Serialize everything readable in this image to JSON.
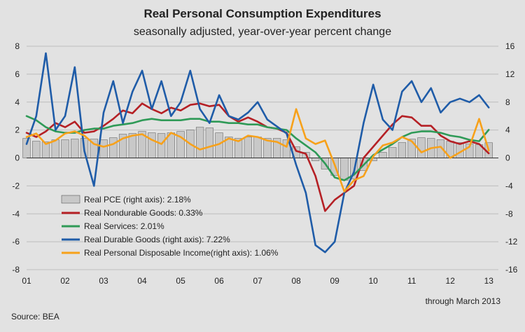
{
  "chart_data": {
    "type": "line",
    "title": "Real Personal Consumption Expenditures",
    "subtitle": "seasonally adjusted, year-over-year percent change",
    "x_tick_labels": [
      "01",
      "02",
      "03",
      "04",
      "05",
      "06",
      "07",
      "08",
      "09",
      "10",
      "11",
      "12",
      "13"
    ],
    "x_range": [
      2001.0,
      2013.25
    ],
    "left_axis": {
      "ticks": [
        8,
        6,
        4,
        2,
        0,
        -2,
        -4,
        -6,
        -8
      ],
      "range": [
        -8,
        8
      ]
    },
    "right_axis": {
      "ticks": [
        16,
        12,
        8,
        4,
        0,
        -4,
        -8,
        -12,
        -16
      ],
      "range": [
        -16,
        16
      ]
    },
    "note": "through March 2013",
    "source": "Source: BEA",
    "legend_position": "lower-left",
    "series": [
      {
        "name": "Real PCE (right axis): 2.18%",
        "kind": "bars",
        "axis": "right",
        "color": "#c8c8c8",
        "x": [
          2001.0,
          2001.25,
          2001.5,
          2001.75,
          2002.0,
          2002.25,
          2002.5,
          2002.75,
          2003.0,
          2003.25,
          2003.5,
          2003.75,
          2004.0,
          2004.25,
          2004.5,
          2004.75,
          2005.0,
          2005.25,
          2005.5,
          2005.75,
          2006.0,
          2006.25,
          2006.5,
          2006.75,
          2007.0,
          2007.25,
          2007.5,
          2007.75,
          2008.0,
          2008.25,
          2008.5,
          2008.75,
          2009.0,
          2009.25,
          2009.5,
          2009.75,
          2010.0,
          2010.25,
          2010.5,
          2010.75,
          2011.0,
          2011.25,
          2011.5,
          2011.75,
          2012.0,
          2012.25,
          2012.5,
          2012.75,
          2013.0
        ],
        "y": [
          2.8,
          2.4,
          2.3,
          2.6,
          2.6,
          2.7,
          2.8,
          2.7,
          2.6,
          2.9,
          3.4,
          3.5,
          3.8,
          3.6,
          3.5,
          3.6,
          3.8,
          4.0,
          4.4,
          4.3,
          3.6,
          3.0,
          2.8,
          3.0,
          3.0,
          2.8,
          2.8,
          2.6,
          1.6,
          0.8,
          -0.4,
          -1.6,
          -2.5,
          -3.2,
          -3.0,
          -1.8,
          -0.4,
          0.8,
          1.5,
          2.2,
          2.7,
          2.9,
          2.8,
          2.6,
          2.4,
          2.2,
          2.0,
          1.9,
          2.18
        ]
      },
      {
        "name": "Real Nondurable Goods: 0.33%",
        "kind": "line",
        "axis": "left",
        "color": "#b52025",
        "x": [
          2001.0,
          2001.25,
          2001.5,
          2001.75,
          2002.0,
          2002.25,
          2002.5,
          2002.75,
          2003.0,
          2003.25,
          2003.5,
          2003.75,
          2004.0,
          2004.25,
          2004.5,
          2004.75,
          2005.0,
          2005.25,
          2005.5,
          2005.75,
          2006.0,
          2006.25,
          2006.5,
          2006.75,
          2007.0,
          2007.25,
          2007.5,
          2007.75,
          2008.0,
          2008.25,
          2008.5,
          2008.75,
          2009.0,
          2009.25,
          2009.5,
          2009.75,
          2010.0,
          2010.25,
          2010.5,
          2010.75,
          2011.0,
          2011.25,
          2011.5,
          2011.75,
          2012.0,
          2012.25,
          2012.5,
          2012.75,
          2013.0
        ],
        "y": [
          1.8,
          1.5,
          1.9,
          2.5,
          2.2,
          2.6,
          1.8,
          1.9,
          2.3,
          2.8,
          3.4,
          3.2,
          3.9,
          3.5,
          3.2,
          3.6,
          3.4,
          3.8,
          3.9,
          3.7,
          3.8,
          3.0,
          2.6,
          2.9,
          2.6,
          2.2,
          2.1,
          1.8,
          0.5,
          0.3,
          -1.3,
          -3.8,
          -3.0,
          -2.5,
          -2.0,
          0.0,
          0.8,
          1.6,
          2.4,
          3.0,
          2.9,
          2.3,
          2.3,
          1.6,
          1.2,
          1.0,
          1.2,
          1.0,
          0.33
        ]
      },
      {
        "name": "Real Services: 2.01%",
        "kind": "line",
        "axis": "left",
        "color": "#2f9a57",
        "x": [
          2001.0,
          2001.25,
          2001.5,
          2001.75,
          2002.0,
          2002.25,
          2002.5,
          2002.75,
          2003.0,
          2003.25,
          2003.5,
          2003.75,
          2004.0,
          2004.25,
          2004.5,
          2004.75,
          2005.0,
          2005.25,
          2005.5,
          2005.75,
          2006.0,
          2006.25,
          2006.5,
          2006.75,
          2007.0,
          2007.25,
          2007.5,
          2007.75,
          2008.0,
          2008.25,
          2008.5,
          2008.75,
          2009.0,
          2009.25,
          2009.5,
          2009.75,
          2010.0,
          2010.25,
          2010.5,
          2010.75,
          2011.0,
          2011.25,
          2011.5,
          2011.75,
          2012.0,
          2012.25,
          2012.5,
          2012.75,
          2013.0
        ],
        "y": [
          3.0,
          2.7,
          2.2,
          1.9,
          1.8,
          1.8,
          2.0,
          2.1,
          2.1,
          2.3,
          2.4,
          2.5,
          2.7,
          2.8,
          2.7,
          2.7,
          2.7,
          2.8,
          2.8,
          2.6,
          2.6,
          2.5,
          2.5,
          2.4,
          2.4,
          2.2,
          2.1,
          2.0,
          1.4,
          0.9,
          0.4,
          -0.4,
          -1.4,
          -1.6,
          -1.2,
          -0.5,
          0.2,
          0.6,
          1.0,
          1.5,
          1.8,
          1.9,
          1.9,
          1.8,
          1.6,
          1.5,
          1.3,
          1.2,
          2.01
        ]
      },
      {
        "name": "Real Durable Goods (right axis): 7.22%",
        "kind": "line",
        "axis": "right",
        "color": "#1f5ca8",
        "x": [
          2001.0,
          2001.25,
          2001.5,
          2001.75,
          2002.0,
          2002.25,
          2002.5,
          2002.75,
          2003.0,
          2003.25,
          2003.5,
          2003.75,
          2004.0,
          2004.25,
          2004.5,
          2004.75,
          2005.0,
          2005.25,
          2005.5,
          2005.75,
          2006.0,
          2006.25,
          2006.5,
          2006.75,
          2007.0,
          2007.25,
          2007.5,
          2007.75,
          2008.0,
          2008.25,
          2008.5,
          2008.75,
          2009.0,
          2009.25,
          2009.5,
          2009.75,
          2010.0,
          2010.25,
          2010.5,
          2010.75,
          2011.0,
          2011.25,
          2011.5,
          2011.75,
          2012.0,
          2012.25,
          2012.5,
          2012.75,
          2013.0
        ],
        "y": [
          2.0,
          6.0,
          15.0,
          4.0,
          6.0,
          13.0,
          1.0,
          -4.0,
          6.5,
          11.0,
          5.0,
          9.5,
          12.5,
          7.0,
          11.0,
          6.0,
          8.0,
          12.5,
          7.0,
          5.0,
          9.0,
          6.0,
          5.5,
          6.5,
          8.0,
          5.5,
          4.5,
          3.5,
          -1.0,
          -5.0,
          -12.5,
          -13.5,
          -12.0,
          -5.0,
          -2.0,
          5.0,
          10.5,
          5.5,
          4.0,
          9.5,
          11.0,
          8.0,
          10.0,
          6.5,
          8.0,
          8.5,
          8.0,
          9.0,
          7.22
        ]
      },
      {
        "name": "Real Personal Disposable Income(right axis): 1.06%",
        "kind": "line",
        "axis": "right",
        "color": "#f7a11a",
        "x": [
          2001.0,
          2001.25,
          2001.5,
          2001.75,
          2002.0,
          2002.25,
          2002.5,
          2002.75,
          2003.0,
          2003.25,
          2003.5,
          2003.75,
          2004.0,
          2004.25,
          2004.5,
          2004.75,
          2005.0,
          2005.25,
          2005.5,
          2005.75,
          2006.0,
          2006.25,
          2006.5,
          2006.75,
          2007.0,
          2007.25,
          2007.5,
          2007.75,
          2008.0,
          2008.25,
          2008.5,
          2008.75,
          2009.0,
          2009.25,
          2009.5,
          2009.75,
          2010.0,
          2010.25,
          2010.5,
          2010.75,
          2011.0,
          2011.25,
          2011.5,
          2011.75,
          2012.0,
          2012.25,
          2012.5,
          2012.75,
          2013.0
        ],
        "y": [
          3.0,
          3.5,
          2.0,
          2.5,
          3.5,
          3.8,
          3.2,
          2.0,
          1.6,
          2.0,
          2.8,
          3.2,
          3.4,
          2.6,
          2.0,
          3.6,
          3.0,
          2.0,
          1.2,
          1.6,
          2.0,
          2.8,
          2.4,
          3.2,
          3.0,
          2.5,
          2.3,
          1.6,
          7.0,
          2.8,
          2.0,
          2.5,
          -1.0,
          -4.8,
          -3.2,
          -2.6,
          0.2,
          1.8,
          2.2,
          3.0,
          2.4,
          0.8,
          1.4,
          1.6,
          0.0,
          0.8,
          1.6,
          5.6,
          1.06
        ]
      }
    ]
  }
}
